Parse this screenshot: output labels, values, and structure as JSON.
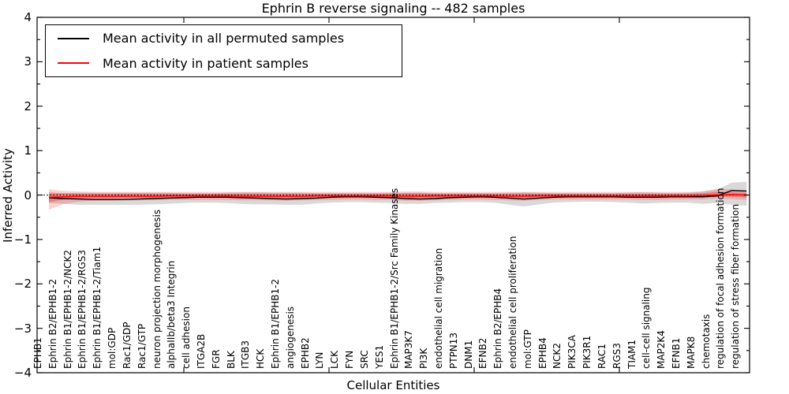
{
  "chart_data": {
    "type": "line",
    "title": "Ephrin B reverse signaling -- 482 samples",
    "xlabel": "Cellular Entities",
    "ylabel": "Inferred Activity",
    "ylim": [
      -4,
      4
    ],
    "yticks": [
      4,
      3,
      2,
      1,
      0,
      -1,
      -2,
      -3,
      -4
    ],
    "ytick_labels": [
      "4",
      "3",
      "2",
      "1",
      "0",
      "−1",
      "−2",
      "−3",
      "−4"
    ],
    "y_minor_tick_step": 0.5,
    "grid": false,
    "legend_position": "upper left",
    "zero_reference_line": {
      "y": 0,
      "style": "dotted",
      "color": "#000000"
    },
    "categories": [
      "EPHB1",
      "Ephrin B2/EPHB1-2",
      "Ephrin B1/EPHB1-2/NCK2",
      "Ephrin B1/EPHB1-2/RGS3",
      "Ephrin B1/EPHB1-2/Tiam1",
      "mol:GDP",
      "Rac1/GDP",
      "Rac1/GTP",
      "neuron projection morphogenesis",
      "alphaIIb/beta3 Integrin",
      "cell adhesion",
      "ITGA2B",
      "FGR",
      "BLK",
      "ITGB3",
      "HCK",
      "Ephrin B1/EPHB1-2",
      "angiogenesis",
      "EPHB2",
      "LYN",
      "LCK",
      "FYN",
      "SRC",
      "YES1",
      "Ephrin B1/EPHB1-2/Src Family Kinases",
      "MAP3K7",
      "PI3K",
      "endothelial cell migration",
      "PTPN13",
      "DNM1",
      "EFNB2",
      "Ephrin B2/EPHB4",
      "endothelial cell proliferation",
      "mol:GTP",
      "EPHB4",
      "NCK2",
      "PIK3CA",
      "PIK3R1",
      "RAC1",
      "RGS3",
      "TIAM1",
      "cell-cell signaling",
      "MAP2K4",
      "EFNB1",
      "MAPK8",
      "chemotaxis",
      "regulation of focal adhesion formation",
      "regulation of stress fiber formation"
    ],
    "series": [
      {
        "name": "Mean activity in all permuted samples",
        "color": "#000000",
        "values": [
          -0.06,
          -0.08,
          -0.09,
          -0.1,
          -0.1,
          -0.1,
          -0.09,
          -0.08,
          -0.07,
          -0.06,
          -0.05,
          -0.05,
          -0.05,
          -0.06,
          -0.07,
          -0.08,
          -0.09,
          -0.08,
          -0.07,
          -0.05,
          -0.04,
          -0.04,
          -0.05,
          -0.06,
          -0.08,
          -0.09,
          -0.08,
          -0.06,
          -0.05,
          -0.04,
          -0.05,
          -0.07,
          -0.09,
          -0.07,
          -0.05,
          -0.04,
          -0.04,
          -0.04,
          -0.04,
          -0.05,
          -0.05,
          -0.05,
          -0.04,
          -0.04,
          -0.04,
          -0.02,
          0.1,
          0.09
        ],
        "band": {
          "fill": "rgba(0,0,0,0.15)",
          "lo": [
            -0.18,
            -0.2,
            -0.22,
            -0.22,
            -0.22,
            -0.22,
            -0.22,
            -0.21,
            -0.2,
            -0.18,
            -0.17,
            -0.17,
            -0.18,
            -0.2,
            -0.21,
            -0.21,
            -0.22,
            -0.22,
            -0.19,
            -0.17,
            -0.16,
            -0.16,
            -0.17,
            -0.18,
            -0.2,
            -0.2,
            -0.18,
            -0.17,
            -0.16,
            -0.16,
            -0.17,
            -0.22,
            -0.26,
            -0.21,
            -0.17,
            -0.16,
            -0.15,
            -0.15,
            -0.16,
            -0.17,
            -0.19,
            -0.18,
            -0.17,
            -0.17,
            -0.2,
            -0.18,
            -0.22,
            -0.24
          ],
          "hi": [
            0.03,
            0.04,
            0.05,
            0.05,
            0.05,
            0.05,
            0.05,
            0.05,
            0.05,
            0.04,
            0.04,
            0.04,
            0.05,
            0.06,
            0.06,
            0.05,
            0.05,
            0.05,
            0.04,
            0.04,
            0.04,
            0.04,
            0.04,
            0.05,
            0.05,
            0.05,
            0.04,
            0.04,
            0.04,
            0.04,
            0.04,
            0.05,
            0.06,
            0.05,
            0.04,
            0.04,
            0.04,
            0.04,
            0.04,
            0.05,
            0.06,
            0.05,
            0.04,
            0.05,
            0.08,
            0.12,
            0.28,
            0.3
          ]
        }
      },
      {
        "name": "Mean activity in patient samples",
        "color": "#ff0000",
        "values": [
          -0.05,
          -0.04,
          -0.03,
          -0.03,
          -0.03,
          -0.03,
          -0.03,
          -0.03,
          -0.02,
          -0.02,
          -0.02,
          -0.02,
          -0.02,
          -0.03,
          -0.03,
          -0.03,
          -0.03,
          -0.03,
          -0.02,
          -0.02,
          -0.02,
          -0.02,
          -0.02,
          -0.02,
          -0.03,
          -0.03,
          -0.02,
          -0.02,
          -0.02,
          -0.02,
          -0.02,
          -0.03,
          -0.03,
          -0.02,
          -0.02,
          -0.02,
          -0.02,
          -0.02,
          -0.02,
          -0.02,
          -0.02,
          -0.02,
          -0.02,
          -0.02,
          -0.01,
          0.0,
          0.01,
          0.0
        ],
        "band": {
          "fill": "rgba(255,0,0,0.18)",
          "lo": [
            -0.33,
            -0.2,
            -0.15,
            -0.13,
            -0.13,
            -0.12,
            -0.12,
            -0.12,
            -0.11,
            -0.11,
            -0.11,
            -0.11,
            -0.11,
            -0.12,
            -0.12,
            -0.12,
            -0.13,
            -0.12,
            -0.11,
            -0.11,
            -0.1,
            -0.1,
            -0.11,
            -0.11,
            -0.13,
            -0.13,
            -0.12,
            -0.11,
            -0.1,
            -0.1,
            -0.11,
            -0.12,
            -0.13,
            -0.11,
            -0.1,
            -0.1,
            -0.1,
            -0.1,
            -0.1,
            -0.1,
            -0.11,
            -0.11,
            -0.1,
            -0.1,
            -0.1,
            -0.08,
            -0.09,
            -0.11
          ],
          "hi": [
            0.13,
            0.09,
            0.08,
            0.07,
            0.07,
            0.07,
            0.07,
            0.07,
            0.07,
            0.07,
            0.07,
            0.07,
            0.07,
            0.07,
            0.07,
            0.07,
            0.07,
            0.07,
            0.07,
            0.07,
            0.07,
            0.07,
            0.07,
            0.07,
            0.08,
            0.08,
            0.07,
            0.07,
            0.07,
            0.07,
            0.07,
            0.07,
            0.07,
            0.07,
            0.07,
            0.07,
            0.07,
            0.07,
            0.07,
            0.07,
            0.07,
            0.07,
            0.07,
            0.07,
            0.08,
            0.14,
            0.13,
            0.1
          ]
        },
        "band_inner": {
          "fill": "rgba(255,0,0,0.30)",
          "lo": [
            -0.16,
            -0.1,
            -0.08,
            -0.07,
            -0.07,
            -0.06,
            -0.06,
            -0.06,
            -0.06,
            -0.06,
            -0.06,
            -0.06,
            -0.06,
            -0.06,
            -0.06,
            -0.06,
            -0.07,
            -0.06,
            -0.06,
            -0.06,
            -0.05,
            -0.05,
            -0.06,
            -0.06,
            -0.07,
            -0.07,
            -0.06,
            -0.06,
            -0.05,
            -0.05,
            -0.06,
            -0.06,
            -0.07,
            -0.06,
            -0.05,
            -0.05,
            -0.05,
            -0.05,
            -0.05,
            -0.05,
            -0.06,
            -0.06,
            -0.05,
            -0.05,
            -0.05,
            -0.04,
            -0.04,
            -0.06
          ],
          "hi": [
            0.06,
            0.04,
            0.03,
            0.03,
            0.03,
            0.03,
            0.03,
            0.03,
            0.03,
            0.03,
            0.03,
            0.03,
            0.03,
            0.03,
            0.03,
            0.03,
            0.03,
            0.03,
            0.03,
            0.03,
            0.03,
            0.03,
            0.03,
            0.03,
            0.04,
            0.04,
            0.03,
            0.03,
            0.03,
            0.03,
            0.03,
            0.03,
            0.03,
            0.03,
            0.03,
            0.03,
            0.03,
            0.03,
            0.03,
            0.03,
            0.03,
            0.03,
            0.03,
            0.03,
            0.04,
            0.07,
            0.06,
            0.05
          ]
        }
      }
    ]
  },
  "legend": {
    "entries": [
      {
        "label": "Mean activity in all permuted samples",
        "color": "#000000"
      },
      {
        "label": "Mean activity in patient samples",
        "color": "#ff0000"
      }
    ]
  }
}
